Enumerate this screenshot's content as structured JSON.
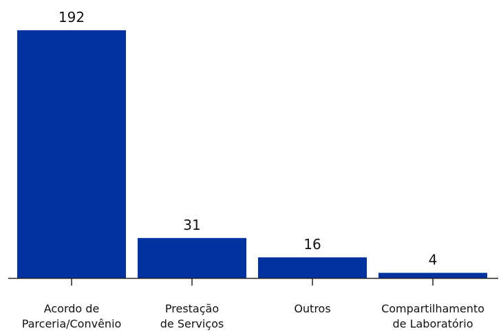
{
  "chart_data": {
    "type": "bar",
    "categories": [
      [
        "Acordo de",
        "Parceria/Convênio"
      ],
      [
        "Prestação",
        "de Serviços"
      ],
      [
        "Outros"
      ],
      [
        "Compartilhamento",
        "de Laboratório"
      ]
    ],
    "values": [
      192,
      31,
      16,
      4
    ],
    "ylim": [
      0,
      192
    ],
    "grid": false,
    "bar_color": "#0033a0",
    "axis_color": "#222222"
  }
}
